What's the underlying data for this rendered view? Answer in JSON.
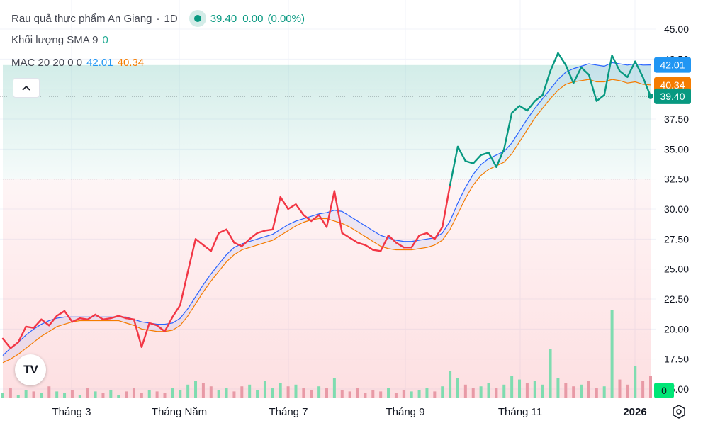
{
  "symbol": {
    "name": "Rau quả thực phẩm An Giang",
    "separator": "·",
    "interval": "1D",
    "last": "39.40",
    "change": "0.00",
    "change_pct": "(0.00%)"
  },
  "volume_indicator": {
    "label": "Khối lượng SMA 9",
    "value": "0"
  },
  "mac_indicator": {
    "label": "MAC 20 20 0 0",
    "upper": "42.01",
    "lower": "40.34"
  },
  "colors": {
    "up": "#089981",
    "down": "#f23645",
    "upper_band": "#2962ff",
    "lower_band": "#f57c00",
    "label_upper": "#2196f3",
    "label_lower": "#f57c00",
    "label_price": "#089981",
    "volume_label_bg": "#00e676"
  },
  "chart_data": {
    "type": "line",
    "x_ticks": [
      "Tháng 3",
      "Tháng Năm",
      "Tháng 7",
      "Tháng 9",
      "Tháng 11",
      "2026"
    ],
    "y_ticks": [
      "45.00",
      "42.50",
      "40.00",
      "37.50",
      "35.00",
      "32.50",
      "30.00",
      "27.50",
      "25.00",
      "22.50",
      "20.00",
      "17.50",
      "15.00"
    ],
    "ylim": [
      15,
      45
    ],
    "price_labels": {
      "upper": "42.01",
      "lower": "40.34",
      "last": "39.40",
      "volume": "0"
    },
    "baseline": 32.5,
    "series": [
      {
        "name": "price",
        "values": [
          19.2,
          18.4,
          18.9,
          20.2,
          20.1,
          20.8,
          20.3,
          21.1,
          21.5,
          20.6,
          20.9,
          20.8,
          21.2,
          20.8,
          20.9,
          21.1,
          20.9,
          20.8,
          18.5,
          20.5,
          20.3,
          19.8,
          21.0,
          22.0,
          24.8,
          27.5,
          27.0,
          26.5,
          28.0,
          28.3,
          27.2,
          26.9,
          27.5,
          28.0,
          28.2,
          28.3,
          31.0,
          30.0,
          30.4,
          29.5,
          29.0,
          29.5,
          28.5,
          31.5,
          28.0,
          27.6,
          27.2,
          27.0,
          26.6,
          26.5,
          27.8,
          27.2,
          26.8,
          26.8,
          27.8,
          28.0,
          27.5,
          28.5,
          32.0,
          35.2,
          34.0,
          33.8,
          34.5,
          34.7,
          33.5,
          35.0,
          38.0,
          38.6,
          38.2,
          39.0,
          39.5,
          41.5,
          43.0,
          42.0,
          40.5,
          41.8,
          41.2,
          39.0,
          39.5,
          42.8,
          41.5,
          41.0,
          42.3,
          41.0,
          39.4
        ]
      },
      {
        "name": "upper",
        "values": [
          17.8,
          18.4,
          18.9,
          19.5,
          20.0,
          20.4,
          20.7,
          20.9,
          21.0,
          21.0,
          21.0,
          21.0,
          21.0,
          21.0,
          21.0,
          21.0,
          21.0,
          20.8,
          20.6,
          20.5,
          20.4,
          20.4,
          20.5,
          20.9,
          21.7,
          22.7,
          23.7,
          24.6,
          25.4,
          26.2,
          26.8,
          27.1,
          27.3,
          27.5,
          27.7,
          27.9,
          28.3,
          28.7,
          29.0,
          29.2,
          29.4,
          29.6,
          29.7,
          29.9,
          29.8,
          29.4,
          29.0,
          28.6,
          28.2,
          27.8,
          27.6,
          27.4,
          27.3,
          27.3,
          27.4,
          27.5,
          27.6,
          28.0,
          29.0,
          30.5,
          31.8,
          32.9,
          33.7,
          34.2,
          34.5,
          34.8,
          35.5,
          36.5,
          37.5,
          38.4,
          39.2,
          40.0,
          40.8,
          41.4,
          41.7,
          41.9,
          42.1,
          42.0,
          41.9,
          42.2,
          42.1,
          42.0,
          42.1,
          42.0,
          42.01
        ]
      },
      {
        "name": "lower",
        "values": [
          17.2,
          17.5,
          17.9,
          18.4,
          18.9,
          19.4,
          19.8,
          20.2,
          20.4,
          20.6,
          20.7,
          20.7,
          20.7,
          20.7,
          20.7,
          20.7,
          20.5,
          20.3,
          20.0,
          19.9,
          19.8,
          19.8,
          19.9,
          20.3,
          21.1,
          22.1,
          23.1,
          24.0,
          24.8,
          25.6,
          26.2,
          26.6,
          26.8,
          27.0,
          27.2,
          27.4,
          27.8,
          28.2,
          28.6,
          28.9,
          29.1,
          29.2,
          29.2,
          29.0,
          28.8,
          28.5,
          28.1,
          27.7,
          27.3,
          26.9,
          26.7,
          26.6,
          26.6,
          26.6,
          26.7,
          26.8,
          27.0,
          27.4,
          28.3,
          29.6,
          30.9,
          32.0,
          32.8,
          33.3,
          33.6,
          33.9,
          34.6,
          35.6,
          36.6,
          37.6,
          38.4,
          39.2,
          39.9,
          40.4,
          40.6,
          40.7,
          40.8,
          40.6,
          40.6,
          40.8,
          40.7,
          40.5,
          40.6,
          40.4,
          40.34
        ]
      },
      {
        "name": "volume",
        "values": [
          0.3,
          0.6,
          0.2,
          0.5,
          0.4,
          0.3,
          0.7,
          0.4,
          0.3,
          0.5,
          0.2,
          0.6,
          0.4,
          0.3,
          0.5,
          0.2,
          0.4,
          0.6,
          0.3,
          0.5,
          0.4,
          0.3,
          0.6,
          0.5,
          0.8,
          1.0,
          0.9,
          0.7,
          0.5,
          0.6,
          0.4,
          0.7,
          0.8,
          0.5,
          1.0,
          0.6,
          0.9,
          0.7,
          0.8,
          0.6,
          0.5,
          0.7,
          0.6,
          1.2,
          0.5,
          0.4,
          0.6,
          0.3,
          0.5,
          0.4,
          0.6,
          0.3,
          0.5,
          0.4,
          0.5,
          0.6,
          0.4,
          0.7,
          1.6,
          1.2,
          0.8,
          0.6,
          0.7,
          0.9,
          0.6,
          0.8,
          1.3,
          1.1,
          0.9,
          1.0,
          0.8,
          2.9,
          1.2,
          0.9,
          0.7,
          0.8,
          1.0,
          0.6,
          0.7,
          5.2,
          1.1,
          0.8,
          1.9,
          1.0,
          1.3
        ]
      }
    ]
  }
}
